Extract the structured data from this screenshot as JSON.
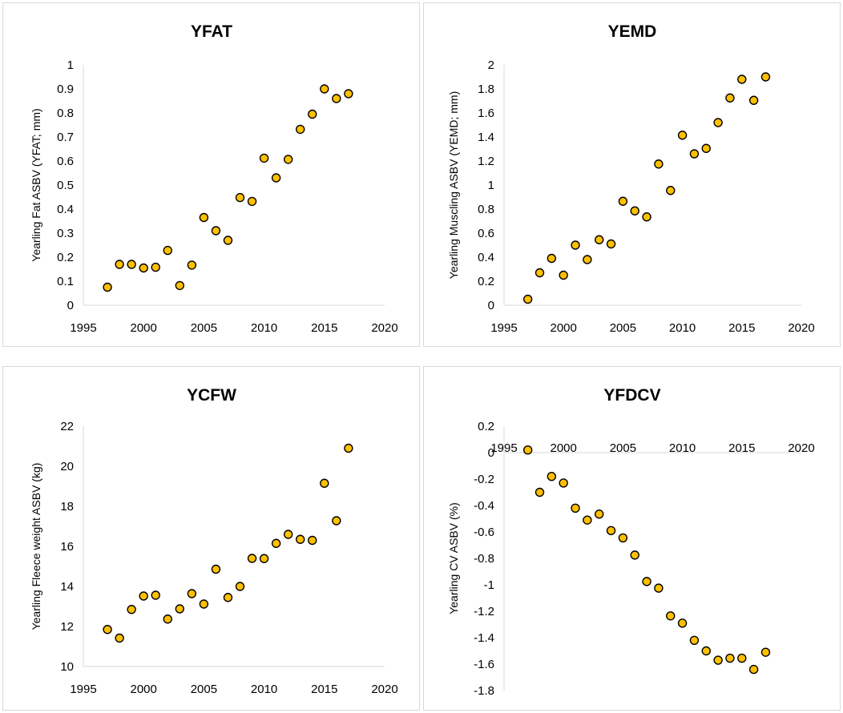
{
  "chart_data": [
    {
      "type": "scatter",
      "title": "YFAT",
      "ylabel": "Yearling Fat ASBV (YFAT; mm)",
      "xlabel": "",
      "xlim": [
        1995,
        2020
      ],
      "xticks": [
        1995,
        2000,
        2005,
        2010,
        2015,
        2020
      ],
      "ylim": [
        0,
        1
      ],
      "yticks": [
        0,
        0.1,
        0.2,
        0.3,
        0.4,
        0.5,
        0.6,
        0.7,
        0.8,
        0.9,
        1
      ],
      "grid": false,
      "marker_color": "#FFC000",
      "points": [
        {
          "x": 1997,
          "y": 0.075
        },
        {
          "x": 1998,
          "y": 0.17
        },
        {
          "x": 1999,
          "y": 0.17
        },
        {
          "x": 2000,
          "y": 0.155
        },
        {
          "x": 2001,
          "y": 0.158
        },
        {
          "x": 2002,
          "y": 0.228
        },
        {
          "x": 2003,
          "y": 0.082
        },
        {
          "x": 2004,
          "y": 0.167
        },
        {
          "x": 2005,
          "y": 0.365
        },
        {
          "x": 2006,
          "y": 0.31
        },
        {
          "x": 2007,
          "y": 0.27
        },
        {
          "x": 2008,
          "y": 0.448
        },
        {
          "x": 2009,
          "y": 0.432
        },
        {
          "x": 2010,
          "y": 0.612
        },
        {
          "x": 2011,
          "y": 0.53
        },
        {
          "x": 2012,
          "y": 0.607
        },
        {
          "x": 2013,
          "y": 0.732
        },
        {
          "x": 2014,
          "y": 0.795
        },
        {
          "x": 2015,
          "y": 0.9
        },
        {
          "x": 2016,
          "y": 0.86
        },
        {
          "x": 2017,
          "y": 0.88
        }
      ]
    },
    {
      "type": "scatter",
      "title": "YEMD",
      "ylabel": "Yearling Muscling ASBV (YEMD; mm)",
      "xlabel": "",
      "xlim": [
        1995,
        2020
      ],
      "xticks": [
        1995,
        2000,
        2005,
        2010,
        2015,
        2020
      ],
      "ylim": [
        0,
        2
      ],
      "yticks": [
        0,
        0.2,
        0.4,
        0.6,
        0.8,
        1,
        1.2,
        1.4,
        1.6,
        1.8,
        2
      ],
      "grid": false,
      "marker_color": "#FFC000",
      "points": [
        {
          "x": 1997,
          "y": 0.05
        },
        {
          "x": 1998,
          "y": 0.27
        },
        {
          "x": 1999,
          "y": 0.39
        },
        {
          "x": 2000,
          "y": 0.25
        },
        {
          "x": 2001,
          "y": 0.5
        },
        {
          "x": 2002,
          "y": 0.38
        },
        {
          "x": 2003,
          "y": 0.545
        },
        {
          "x": 2004,
          "y": 0.51
        },
        {
          "x": 2005,
          "y": 0.865
        },
        {
          "x": 2006,
          "y": 0.785
        },
        {
          "x": 2007,
          "y": 0.735
        },
        {
          "x": 2008,
          "y": 1.175
        },
        {
          "x": 2009,
          "y": 0.955
        },
        {
          "x": 2010,
          "y": 1.415
        },
        {
          "x": 2011,
          "y": 1.26
        },
        {
          "x": 2012,
          "y": 1.305
        },
        {
          "x": 2013,
          "y": 1.52
        },
        {
          "x": 2014,
          "y": 1.725
        },
        {
          "x": 2015,
          "y": 1.88
        },
        {
          "x": 2016,
          "y": 1.705
        },
        {
          "x": 2017,
          "y": 1.9
        }
      ]
    },
    {
      "type": "scatter",
      "title": "YCFW",
      "ylabel": "Yearling Fleece weight ASBV (kg)",
      "xlabel": "",
      "xlim": [
        1995,
        2020
      ],
      "xticks": [
        1995,
        2000,
        2005,
        2010,
        2015,
        2020
      ],
      "ylim": [
        10,
        22
      ],
      "yticks": [
        10,
        12,
        14,
        16,
        18,
        20,
        22
      ],
      "grid": false,
      "marker_color": "#FFC000",
      "points": [
        {
          "x": 1997,
          "y": 11.85
        },
        {
          "x": 1998,
          "y": 11.42
        },
        {
          "x": 1999,
          "y": 12.85
        },
        {
          "x": 2000,
          "y": 13.52
        },
        {
          "x": 2001,
          "y": 13.56
        },
        {
          "x": 2002,
          "y": 12.37
        },
        {
          "x": 2003,
          "y": 12.88
        },
        {
          "x": 2004,
          "y": 13.64
        },
        {
          "x": 2005,
          "y": 13.12
        },
        {
          "x": 2006,
          "y": 14.86
        },
        {
          "x": 2007,
          "y": 13.45
        },
        {
          "x": 2008,
          "y": 14.0
        },
        {
          "x": 2009,
          "y": 15.4
        },
        {
          "x": 2010,
          "y": 15.39
        },
        {
          "x": 2011,
          "y": 16.15
        },
        {
          "x": 2012,
          "y": 16.6
        },
        {
          "x": 2013,
          "y": 16.35
        },
        {
          "x": 2014,
          "y": 16.3
        },
        {
          "x": 2015,
          "y": 19.15
        },
        {
          "x": 2016,
          "y": 17.28
        },
        {
          "x": 2017,
          "y": 20.9
        }
      ]
    },
    {
      "type": "scatter",
      "title": "YFDCV",
      "ylabel": "Yearling CV ASBV (%)",
      "xlabel": "",
      "xlim": [
        1995,
        2020
      ],
      "xticks": [
        1995,
        2000,
        2005,
        2010,
        2015,
        2020
      ],
      "ylim": [
        -1.8,
        0.2
      ],
      "yticks": [
        0.2,
        0,
        -0.2,
        -0.4,
        -0.6,
        -0.8,
        -1,
        -1.2,
        -1.4,
        -1.6,
        -1.8
      ],
      "x_axis_crosses_at": 0,
      "grid": false,
      "marker_color": "#FFC000",
      "points": [
        {
          "x": 1997,
          "y": 0.02
        },
        {
          "x": 1998,
          "y": -0.3
        },
        {
          "x": 1999,
          "y": -0.18
        },
        {
          "x": 2000,
          "y": -0.23
        },
        {
          "x": 2001,
          "y": -0.42
        },
        {
          "x": 2002,
          "y": -0.51
        },
        {
          "x": 2003,
          "y": -0.465
        },
        {
          "x": 2004,
          "y": -0.59
        },
        {
          "x": 2005,
          "y": -0.645
        },
        {
          "x": 2006,
          "y": -0.775
        },
        {
          "x": 2007,
          "y": -0.975
        },
        {
          "x": 2008,
          "y": -1.025
        },
        {
          "x": 2009,
          "y": -1.235
        },
        {
          "x": 2010,
          "y": -1.29
        },
        {
          "x": 2011,
          "y": -1.42
        },
        {
          "x": 2012,
          "y": -1.5
        },
        {
          "x": 2013,
          "y": -1.57
        },
        {
          "x": 2014,
          "y": -1.555
        },
        {
          "x": 2015,
          "y": -1.555
        },
        {
          "x": 2016,
          "y": -1.64
        },
        {
          "x": 2017,
          "y": -1.51
        }
      ]
    }
  ]
}
